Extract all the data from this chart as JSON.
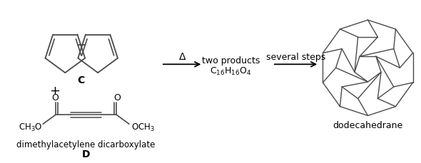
{
  "background_color": "#ffffff",
  "text_color": "#000000",
  "line_color": "#4a4a4a",
  "fig_width": 5.9,
  "fig_height": 2.29,
  "dpi": 100,
  "label_C": "C",
  "label_D": "D",
  "label_plus": "+",
  "label_delta": "Δ",
  "label_two_products": "two products",
  "label_formula": "C$_{16}$H$_{16}$O$_{4}$",
  "label_several_steps": "several steps",
  "label_dodecahedrane": "dodecahedrane",
  "label_dimethyl": "dimethylacetylene dicarboxylate",
  "label_CH3O": "CH$_3$O",
  "label_OCH3": "OCH$_3$",
  "label_O_left": "O",
  "label_O_right": "O"
}
